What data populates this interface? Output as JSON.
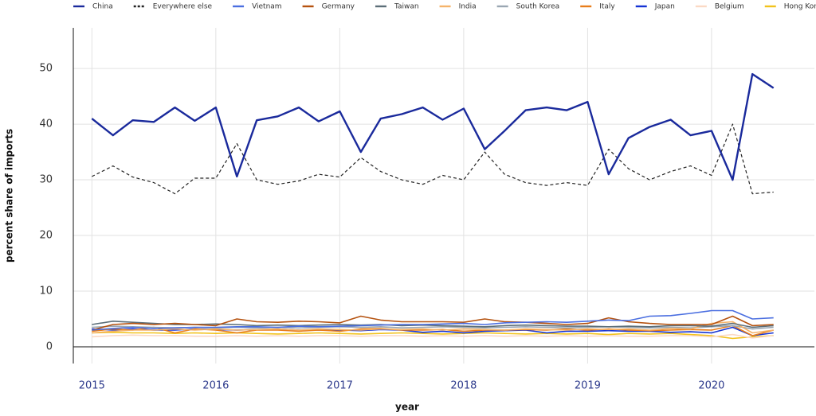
{
  "chart_data": {
    "type": "line",
    "xlabel": "year",
    "ylabel": "percent share of imports",
    "x": [
      2015,
      2015.17,
      2015.33,
      2015.5,
      2015.67,
      2015.83,
      2016,
      2016.17,
      2016.33,
      2016.5,
      2016.67,
      2016.83,
      2017,
      2017.17,
      2017.33,
      2017.5,
      2017.67,
      2017.83,
      2018,
      2018.17,
      2018.33,
      2018.5,
      2018.67,
      2018.83,
      2019,
      2019.17,
      2019.33,
      2019.5,
      2019.67,
      2019.83,
      2020,
      2020.17,
      2020.33,
      2020.5
    ],
    "xlim": [
      2014.85,
      2020.83
    ],
    "xticks": [
      2015,
      2016,
      2017,
      2018,
      2019,
      2020
    ],
    "ylim": [
      -3,
      57.3
    ],
    "yticks": [
      0,
      10,
      20,
      30,
      40,
      50
    ],
    "grid": true,
    "legend": "top",
    "series": [
      {
        "name": "China",
        "color": "#1a2a9c",
        "values": [
          41,
          38,
          40.7,
          40.4,
          43,
          40.6,
          43,
          30.6,
          40.7,
          41.4,
          43,
          40.5,
          42.3,
          35,
          41,
          41.8,
          43,
          40.8,
          42.8,
          35.5,
          38.8,
          42.5,
          43,
          42.5,
          44,
          31,
          37.5,
          39.5,
          40.8,
          38,
          38.8,
          30,
          49,
          46.5
        ]
      },
      {
        "name": "Everywhere else",
        "color": "#222222",
        "dashed": true,
        "values": [
          30.6,
          32.5,
          30.5,
          29.5,
          27.5,
          30.3,
          30.3,
          36.5,
          30,
          29.2,
          29.8,
          31,
          30.5,
          34,
          31.5,
          30,
          29.2,
          30.8,
          30,
          35,
          31,
          29.5,
          29,
          29.5,
          29,
          35.5,
          32,
          30,
          31.5,
          32.5,
          30.8,
          40,
          27.5,
          27.8
        ]
      },
      {
        "name": "Vietnam",
        "color": "#4a6ee0",
        "values": [
          3,
          3.3,
          3.5,
          3.3,
          3.4,
          3.5,
          3.5,
          3.6,
          3.6,
          3.5,
          3.7,
          3.6,
          3.7,
          3.8,
          3.9,
          4,
          4,
          4.1,
          4.2,
          4,
          4.3,
          4.4,
          4.5,
          4.4,
          4.6,
          4.8,
          4.7,
          5.5,
          5.6,
          6,
          6.5,
          6.5,
          5,
          5.2
        ]
      },
      {
        "name": "Germany",
        "color": "#b5520f",
        "values": [
          3,
          4,
          4.2,
          4,
          4.2,
          4,
          3.8,
          5,
          4.5,
          4.4,
          4.6,
          4.5,
          4.3,
          5.5,
          4.8,
          4.5,
          4.5,
          4.5,
          4.4,
          5,
          4.5,
          4.4,
          4.2,
          4,
          4.2,
          5.2,
          4.5,
          4.2,
          4,
          4,
          4,
          5.5,
          3.8,
          4
        ]
      },
      {
        "name": "Taiwan",
        "color": "#5c6e78",
        "values": [
          4,
          4.6,
          4.4,
          4.2,
          4,
          4,
          4.1,
          4,
          3.8,
          3.9,
          3.8,
          3.9,
          4,
          3.9,
          4,
          3.8,
          3.9,
          3.8,
          3.7,
          3.6,
          3.8,
          3.9,
          3.8,
          3.7,
          3.7,
          3.6,
          3.7,
          3.6,
          3.8,
          3.8,
          3.7,
          4.2,
          3.5,
          3.8
        ]
      },
      {
        "name": "India",
        "color": "#f5b36a",
        "values": [
          2.5,
          2.8,
          3,
          3,
          3.2,
          3,
          3.2,
          3,
          3.1,
          3.2,
          3,
          3.2,
          3.1,
          3,
          3.2,
          3.1,
          3.2,
          3,
          3.2,
          3.1,
          3,
          3.2,
          3.1,
          3,
          3.2,
          3.1,
          3.2,
          3,
          3.3,
          3.2,
          4.2,
          4.5,
          2.5,
          3
        ]
      },
      {
        "name": "South Korea",
        "color": "#9aa6b2",
        "values": [
          3.5,
          3.7,
          3.6,
          3.5,
          3.4,
          3.5,
          3.4,
          3.5,
          3.4,
          3.5,
          3.4,
          3.5,
          3.6,
          3.5,
          3.6,
          3.4,
          3.5,
          3.6,
          3.5,
          3.4,
          3.5,
          3.6,
          3.5,
          3.4,
          3.5,
          3.6,
          3.5,
          3.4,
          3.5,
          3.4,
          3.6,
          3.8,
          3.2,
          3.5
        ]
      },
      {
        "name": "Italy",
        "color": "#e87d1a",
        "values": [
          2.8,
          3.2,
          3,
          3.5,
          2.5,
          3.2,
          3,
          2.5,
          3,
          3,
          2.8,
          3,
          2.8,
          3.2,
          3.3,
          3,
          3,
          3.1,
          2.8,
          3,
          3,
          3.1,
          3,
          3.2,
          3,
          3.2,
          3,
          2.9,
          3,
          3.1,
          3,
          3.8,
          2,
          3
        ]
      },
      {
        "name": "Japan",
        "color": "#1533d4",
        "values": [
          3.2,
          3,
          3.2,
          3,
          3,
          3.2,
          3.1,
          3,
          3.1,
          3.2,
          3,
          3,
          3,
          2.9,
          3.1,
          3,
          2.6,
          2.8,
          2.5,
          2.8,
          2.9,
          3,
          2.5,
          2.8,
          2.8,
          2.9,
          2.8,
          2.8,
          2.6,
          2.7,
          2.5,
          3.5,
          2,
          2.5
        ]
      },
      {
        "name": "Belgium",
        "color": "#fbd9c4",
        "values": [
          1.8,
          2,
          2.1,
          2,
          2,
          1.9,
          1.9,
          2,
          1.9,
          2,
          1.9,
          2,
          2,
          1.9,
          2,
          2,
          1.9,
          2,
          1.9,
          2,
          1.9,
          2,
          1.9,
          2,
          1.9,
          2,
          1.9,
          1.9,
          2,
          2,
          1.8,
          2.2,
          1.6,
          2
        ]
      },
      {
        "name": "Hong Kong",
        "color": "#f2c21c",
        "values": [
          2.5,
          2.6,
          2.5,
          2.5,
          2.4,
          2.5,
          2.4,
          2.5,
          2.4,
          2.3,
          2.4,
          2.5,
          2.4,
          2.3,
          2.4,
          2.5,
          2.4,
          2.3,
          2.4,
          2.5,
          2.4,
          2.3,
          2.4,
          2.3,
          2.4,
          2.2,
          2.4,
          2.3,
          2.4,
          2.2,
          2,
          1.5,
          1.8,
          2
        ]
      }
    ]
  }
}
